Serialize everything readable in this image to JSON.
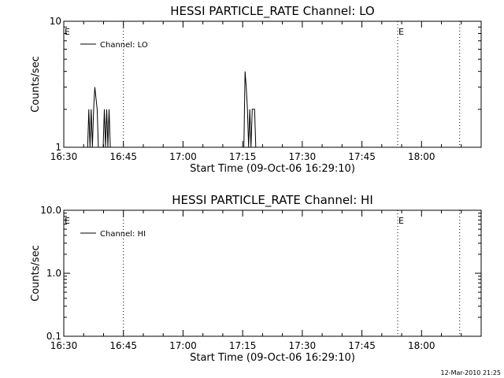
{
  "footer_timestamp": "12-Mar-2010 21:25",
  "chart_data": [
    {
      "type": "line",
      "title": "HESSI PARTICLE_RATE Channel: LO",
      "xlabel": "Start Time (09-Oct-06 16:29:10)",
      "ylabel": "Counts/sec",
      "yscale": "log",
      "ylim": [
        1,
        10
      ],
      "ytick_labels": [
        "1",
        "10"
      ],
      "ytick_values": [
        1,
        10
      ],
      "xlim": [
        16.5,
        18.25
      ],
      "xtick_labels": [
        "16:30",
        "16:45",
        "17:00",
        "17:15",
        "17:30",
        "17:45",
        "18:00"
      ],
      "xtick_values": [
        16.5,
        16.75,
        17.0,
        17.25,
        17.5,
        17.75,
        18.0
      ],
      "vlines": [
        16.75,
        17.9,
        18.16
      ],
      "markers": [
        {
          "text": "E",
          "x": 16.5
        },
        {
          "text": "E",
          "x": 17.9
        }
      ],
      "legend": {
        "placement": "top-left",
        "label": "Channel: LO"
      },
      "grid": false,
      "series": [
        {
          "name": "Channel: LO",
          "points": [
            [
              16.6,
              1.0
            ],
            [
              16.605,
              2.0
            ],
            [
              16.61,
              1.0
            ],
            [
              16.615,
              2.0
            ],
            [
              16.62,
              1.0
            ],
            [
              16.625,
              2.0
            ],
            [
              16.63,
              3.0
            ],
            [
              16.64,
              2.0
            ],
            [
              16.645,
              1.0
            ],
            [
              16.665,
              1.0
            ],
            [
              16.67,
              2.0
            ],
            [
              16.675,
              1.0
            ],
            [
              16.68,
              2.0
            ],
            [
              16.685,
              1.0
            ],
            [
              16.69,
              2.0
            ],
            [
              16.695,
              1.0
            ],
            [
              17.255,
              1.0
            ],
            [
              17.26,
              4.0
            ],
            [
              17.265,
              3.0
            ],
            [
              17.27,
              2.0
            ],
            [
              17.275,
              1.0
            ],
            [
              17.28,
              2.0
            ],
            [
              17.285,
              1.0
            ],
            [
              17.29,
              2.0
            ],
            [
              17.3,
              2.0
            ],
            [
              17.305,
              1.0
            ]
          ]
        }
      ]
    },
    {
      "type": "line",
      "title": "HESSI PARTICLE_RATE Channel: HI",
      "xlabel": "Start Time (09-Oct-06 16:29:10)",
      "ylabel": "Counts/sec",
      "yscale": "log",
      "ylim": [
        0.1,
        10
      ],
      "ytick_labels": [
        "0.1",
        "1.0",
        "10.0"
      ],
      "ytick_values": [
        0.1,
        1,
        10
      ],
      "xlim": [
        16.5,
        18.25
      ],
      "xtick_labels": [
        "16:30",
        "16:45",
        "17:00",
        "17:15",
        "17:30",
        "17:45",
        "18:00"
      ],
      "xtick_values": [
        16.5,
        16.75,
        17.0,
        17.25,
        17.5,
        17.75,
        18.0
      ],
      "vlines": [
        16.75,
        17.9,
        18.16
      ],
      "markers": [
        {
          "text": "E",
          "x": 16.5
        },
        {
          "text": "E",
          "x": 17.9
        }
      ],
      "legend": {
        "placement": "top-left",
        "label": "Channel: HI"
      },
      "grid": false,
      "series": [
        {
          "name": "Channel: HI",
          "points": []
        }
      ]
    }
  ]
}
